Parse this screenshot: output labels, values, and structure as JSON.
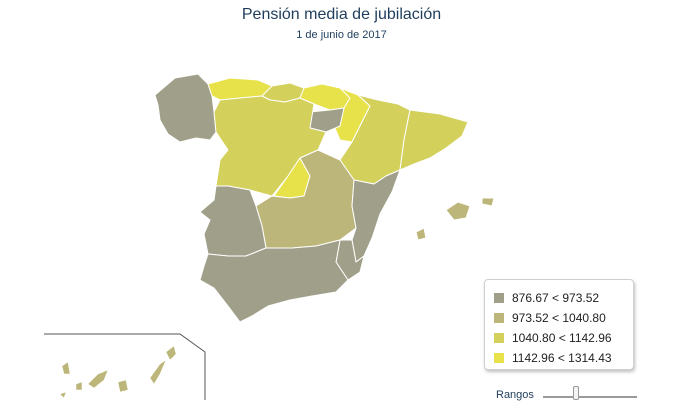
{
  "header": {
    "title": "Pensión media de jubilación",
    "subtitle": "1 de junio de 2017"
  },
  "legend": {
    "items": [
      {
        "label": "876.67 < 973.52",
        "color": "#a0a08a"
      },
      {
        "label": "973.52 < 1040.80",
        "color": "#bdb67a"
      },
      {
        "label": "1040.80 < 1142.96",
        "color": "#d4d05c"
      },
      {
        "label": "1142.96 < 1314.43",
        "color": "#e8e24a"
      }
    ]
  },
  "controls": {
    "ranges_label": "Rangos",
    "slider_value": 0.35
  }
}
